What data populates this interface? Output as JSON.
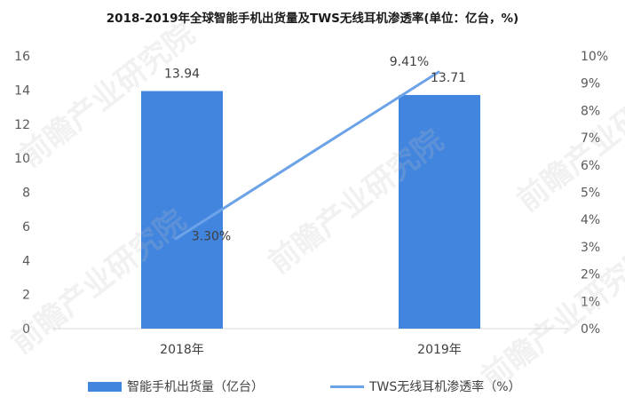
{
  "chart_data": {
    "type": "bar+line",
    "title": "2018-2019年全球智能手机出货量及TWS无线耳机渗透率(单位：亿台，%)",
    "categories": [
      "2018年",
      "2019年"
    ],
    "series": [
      {
        "name": "智能手机出货量（亿台）",
        "type": "bar",
        "axis": "left",
        "values": [
          13.94,
          13.71
        ],
        "labels": [
          "13.94",
          "13.71"
        ]
      },
      {
        "name": "TWS无线耳机渗透率（%）",
        "type": "line",
        "axis": "right",
        "values": [
          3.3,
          9.41
        ],
        "labels": [
          "3.30%",
          "9.41%"
        ]
      }
    ],
    "y_left": {
      "min": 0,
      "max": 16,
      "step": 2,
      "ticks": [
        "0",
        "2",
        "4",
        "6",
        "8",
        "10",
        "12",
        "14",
        "16"
      ]
    },
    "y_right": {
      "min": 0,
      "max": 10,
      "step": 1,
      "ticks": [
        "0%",
        "1%",
        "2%",
        "3%",
        "4%",
        "5%",
        "6%",
        "7%",
        "8%",
        "9%",
        "10%"
      ]
    },
    "grid": false,
    "legend_position": "bottom",
    "colors": {
      "bar": "#4185DF",
      "line": "#6CA3E8",
      "axis": "#D9D9D9"
    }
  },
  "watermark": "前瞻产业研究院"
}
